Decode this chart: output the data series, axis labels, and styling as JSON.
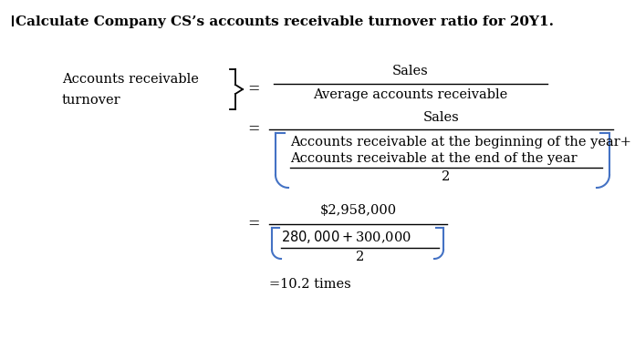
{
  "title": "Calculate Company CS’s accounts receivable turnover ratio for 20Y1.",
  "title_fontsize": 11,
  "title_fontweight": "bold",
  "bg_color": "#ffffff",
  "text_color": "#000000",
  "bracket_color": "#4472C4",
  "font_family": "DejaVu Serif",
  "label_ar": "Accounts receivable",
  "label_turnover": "turnover",
  "eq1_num": "Sales",
  "eq1_den": "Average accounts receivable",
  "eq2_num": "Sales",
  "eq2_den_line1": "Accounts receivable at the beginning of the year+",
  "eq2_den_line2": "Accounts receivable at the end of the year",
  "eq2_den_denom": "2",
  "eq3_num": "$2,958,000",
  "eq3_den_line1": "$280,000 + $300,000",
  "eq3_den_denom": "2",
  "result": "=10.2 times",
  "figsize": [
    6.96,
    3.94
  ],
  "dpi": 100
}
